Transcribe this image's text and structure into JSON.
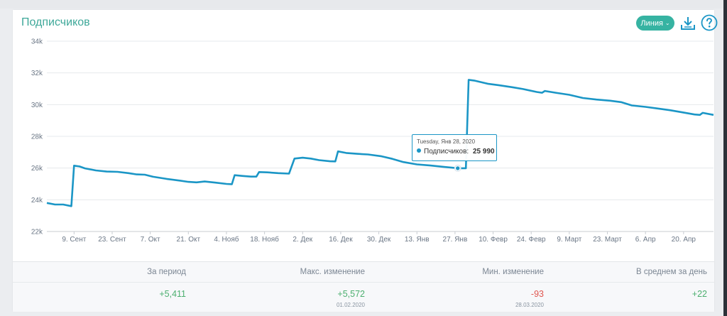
{
  "widget": {
    "title": "Подписчиков",
    "chart_type_button": "Линия",
    "chart_type_chevron": "⌄",
    "download_icon": "download-icon",
    "help_icon": "help-icon"
  },
  "tooltip": {
    "date": "Tuesday, Янв 28, 2020",
    "series": "Подписчиков",
    "value": "25 990"
  },
  "stats": [
    {
      "label": "За период",
      "value": "+5,411",
      "date": "",
      "tone": "pos"
    },
    {
      "label": "Макс. изменение",
      "value": "+5,572",
      "date": "01.02.2020",
      "tone": "pos"
    },
    {
      "label": "Мин. изменение",
      "value": "-93",
      "date": "28.03.2020",
      "tone": "neg"
    },
    {
      "label": "В среднем за день",
      "value": "+22",
      "date": "",
      "tone": "pos"
    }
  ],
  "chart_data": {
    "type": "line",
    "color": "#1b96c6",
    "grid": true,
    "ylim": [
      22000,
      34000
    ],
    "y_ticks": [
      {
        "v": 22000,
        "label": "22k"
      },
      {
        "v": 24000,
        "label": "24k"
      },
      {
        "v": 26000,
        "label": "26k"
      },
      {
        "v": 28000,
        "label": "28k"
      },
      {
        "v": 30000,
        "label": "30k"
      },
      {
        "v": 32000,
        "label": "32k"
      },
      {
        "v": 34000,
        "label": "34k"
      }
    ],
    "x_range": [
      "2019-08-30",
      "2020-05-01"
    ],
    "x_ticks": [
      {
        "date": "2019-09-09",
        "label": "9. Сент"
      },
      {
        "date": "2019-09-23",
        "label": "23. Сент"
      },
      {
        "date": "2019-10-07",
        "label": "7. Окт"
      },
      {
        "date": "2019-10-21",
        "label": "21. Окт"
      },
      {
        "date": "2019-11-04",
        "label": "4. Нояб"
      },
      {
        "date": "2019-11-18",
        "label": "18. Нояб"
      },
      {
        "date": "2019-12-02",
        "label": "2. Дек"
      },
      {
        "date": "2019-12-16",
        "label": "16. Дек"
      },
      {
        "date": "2019-12-30",
        "label": "30. Дек"
      },
      {
        "date": "2020-01-13",
        "label": "13. Янв"
      },
      {
        "date": "2020-01-27",
        "label": "27. Янв"
      },
      {
        "date": "2020-02-10",
        "label": "10. Февр"
      },
      {
        "date": "2020-02-24",
        "label": "24. Февр"
      },
      {
        "date": "2020-03-09",
        "label": "9. Март"
      },
      {
        "date": "2020-03-23",
        "label": "23. Март"
      },
      {
        "date": "2020-04-06",
        "label": "6. Апр"
      },
      {
        "date": "2020-04-20",
        "label": "20. Апр"
      }
    ],
    "series": [
      {
        "name": "Подписчиков",
        "points": [
          [
            "2019-08-30",
            23800
          ],
          [
            "2019-09-02",
            23700
          ],
          [
            "2019-09-05",
            23700
          ],
          [
            "2019-09-08",
            23600
          ],
          [
            "2019-09-09",
            26150
          ],
          [
            "2019-09-11",
            26100
          ],
          [
            "2019-09-13",
            25980
          ],
          [
            "2019-09-17",
            25850
          ],
          [
            "2019-09-21",
            25780
          ],
          [
            "2019-09-25",
            25760
          ],
          [
            "2019-09-29",
            25680
          ],
          [
            "2019-10-02",
            25600
          ],
          [
            "2019-10-05",
            25580
          ],
          [
            "2019-10-08",
            25450
          ],
          [
            "2019-10-13",
            25320
          ],
          [
            "2019-10-17",
            25230
          ],
          [
            "2019-10-21",
            25130
          ],
          [
            "2019-10-24",
            25100
          ],
          [
            "2019-10-27",
            25150
          ],
          [
            "2019-10-31",
            25080
          ],
          [
            "2019-11-04",
            25000
          ],
          [
            "2019-11-06",
            24980
          ],
          [
            "2019-11-07",
            25550
          ],
          [
            "2019-11-10",
            25500
          ],
          [
            "2019-11-13",
            25460
          ],
          [
            "2019-11-15",
            25460
          ],
          [
            "2019-11-16",
            25750
          ],
          [
            "2019-11-19",
            25730
          ],
          [
            "2019-11-23",
            25680
          ],
          [
            "2019-11-27",
            25650
          ],
          [
            "2019-11-29",
            26600
          ],
          [
            "2019-12-02",
            26650
          ],
          [
            "2019-12-05",
            26600
          ],
          [
            "2019-12-08",
            26500
          ],
          [
            "2019-12-12",
            26430
          ],
          [
            "2019-12-14",
            26420
          ],
          [
            "2019-12-15",
            27050
          ],
          [
            "2019-12-18",
            26950
          ],
          [
            "2019-12-22",
            26900
          ],
          [
            "2019-12-26",
            26860
          ],
          [
            "2019-12-31",
            26740
          ],
          [
            "2020-01-04",
            26580
          ],
          [
            "2020-01-08",
            26380
          ],
          [
            "2020-01-13",
            26230
          ],
          [
            "2020-01-18",
            26160
          ],
          [
            "2020-01-23",
            26070
          ],
          [
            "2020-01-28",
            25990
          ],
          [
            "2020-01-31",
            25990
          ],
          [
            "2020-02-01",
            31562
          ],
          [
            "2020-02-03",
            31520
          ],
          [
            "2020-02-08",
            31320
          ],
          [
            "2020-02-12",
            31230
          ],
          [
            "2020-02-17",
            31100
          ],
          [
            "2020-02-21",
            30980
          ],
          [
            "2020-02-26",
            30800
          ],
          [
            "2020-02-28",
            30750
          ],
          [
            "2020-02-29",
            30860
          ],
          [
            "2020-03-04",
            30750
          ],
          [
            "2020-03-09",
            30620
          ],
          [
            "2020-03-14",
            30420
          ],
          [
            "2020-03-19",
            30320
          ],
          [
            "2020-03-24",
            30250
          ],
          [
            "2020-03-28",
            30157
          ],
          [
            "2020-04-01",
            29950
          ],
          [
            "2020-04-06",
            29860
          ],
          [
            "2020-04-11",
            29740
          ],
          [
            "2020-04-15",
            29650
          ],
          [
            "2020-04-19",
            29530
          ],
          [
            "2020-04-24",
            29380
          ],
          [
            "2020-04-26",
            29350
          ],
          [
            "2020-04-27",
            29480
          ],
          [
            "2020-05-01",
            29350
          ]
        ]
      }
    ],
    "highlight": {
      "date": "2020-01-28",
      "value": 25990
    }
  }
}
